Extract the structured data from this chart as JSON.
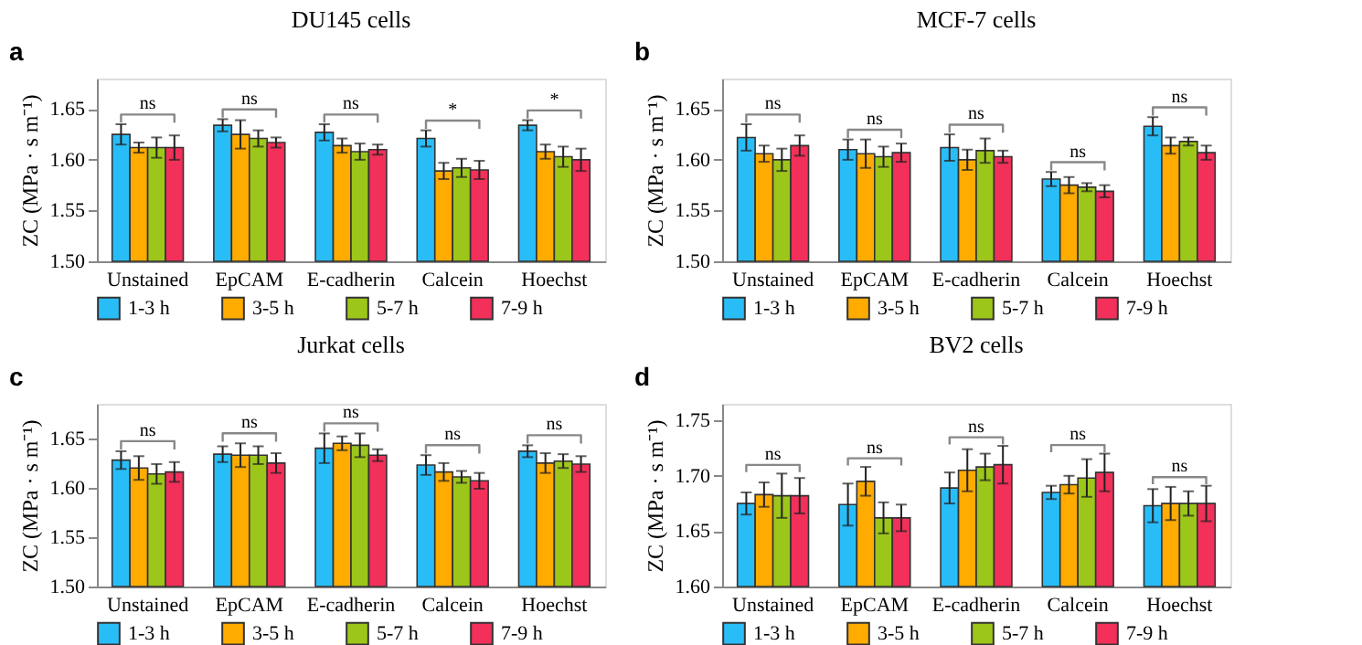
{
  "chart_data": [
    {
      "type": "bar",
      "title": "DU145 cells",
      "ylabel": "ZC (MPa · s m⁻¹)",
      "categories": [
        "Unstained",
        "EpCAM",
        "E-cadherin",
        "Calcein",
        "Hoechst"
      ],
      "series": [
        {
          "name": "1-3 h",
          "color": "#29bdf8",
          "values": [
            1.625,
            1.634,
            1.627,
            1.621,
            1.634
          ],
          "errors": [
            0.01,
            0.006,
            0.008,
            0.008,
            0.005
          ]
        },
        {
          "name": "3-5 h",
          "color": "#ffab00",
          "values": [
            1.612,
            1.625,
            1.614,
            1.589,
            1.608
          ],
          "errors": [
            0.005,
            0.014,
            0.007,
            0.008,
            0.007
          ]
        },
        {
          "name": "5-7 h",
          "color": "#9dc61a",
          "values": [
            1.612,
            1.621,
            1.608,
            1.592,
            1.603
          ],
          "errors": [
            0.01,
            0.008,
            0.008,
            0.009,
            0.01
          ]
        },
        {
          "name": "7-9 h",
          "color": "#f2305a",
          "values": [
            1.612,
            1.617,
            1.61,
            1.59,
            1.6
          ],
          "errors": [
            0.012,
            0.005,
            0.005,
            0.009,
            0.011
          ]
        }
      ],
      "ylim": [
        1.5,
        1.68
      ],
      "yticks": [
        {
          "value": 1.5,
          "label": "1.50"
        },
        1.55,
        {
          "value": 1.6,
          "label": "1.60"
        },
        1.65
      ],
      "annotations": [
        "a",
        "ns",
        "ns",
        "ns",
        "*",
        "*"
      ],
      "legend": "bottom",
      "grid": false
    },
    {
      "type": "bar",
      "title": "MCF-7 cells",
      "ylabel": "ZC (MPa · s m⁻¹)",
      "categories": [
        "Unstained",
        "EpCAM",
        "E-cadherin",
        "Calcein",
        "Hoechst"
      ],
      "series": [
        {
          "name": "1-3 h",
          "color": "#29bdf8",
          "values": [
            1.622,
            1.61,
            1.612,
            1.581,
            1.633
          ],
          "errors": [
            0.013,
            0.01,
            0.013,
            0.007,
            0.009
          ]
        },
        {
          "name": "3-5 h",
          "color": "#ffab00",
          "values": [
            1.606,
            1.606,
            1.6,
            1.575,
            1.614
          ],
          "errors": [
            0.008,
            0.014,
            0.01,
            0.008,
            0.008
          ]
        },
        {
          "name": "5-7 h",
          "color": "#9dc61a",
          "values": [
            1.6,
            1.603,
            1.609,
            1.573,
            1.618
          ],
          "errors": [
            0.011,
            0.01,
            0.012,
            0.004,
            0.004
          ]
        },
        {
          "name": "7-9 h",
          "color": "#f2305a",
          "values": [
            1.614,
            1.607,
            1.603,
            1.569,
            1.607
          ],
          "errors": [
            0.01,
            0.009,
            0.006,
            0.006,
            0.007
          ]
        }
      ],
      "ylim": [
        1.5,
        1.68
      ],
      "yticks": [
        {
          "value": 1.5,
          "label": "1.50"
        },
        1.55,
        {
          "value": 1.6,
          "label": "1.60"
        },
        1.65
      ],
      "annotations": [
        "b",
        "ns",
        "ns",
        "ns",
        "ns",
        "ns"
      ],
      "legend": "bottom",
      "grid": false
    },
    {
      "type": "bar",
      "title": "Jurkat cells",
      "ylabel": "ZC (MPa · s m⁻¹)",
      "categories": [
        "Unstained",
        "EpCAM",
        "E-cadherin",
        "Calcein",
        "Hoechst"
      ],
      "series": [
        {
          "name": "1-3 h",
          "color": "#29bdf8",
          "values": [
            1.628,
            1.634,
            1.64,
            1.623,
            1.637
          ],
          "errors": [
            0.009,
            0.008,
            0.015,
            0.01,
            0.006
          ]
        },
        {
          "name": "3-5 h",
          "color": "#ffab00",
          "values": [
            1.62,
            1.633,
            1.645,
            1.616,
            1.625
          ],
          "errors": [
            0.012,
            0.012,
            0.007,
            0.009,
            0.01
          ]
        },
        {
          "name": "5-7 h",
          "color": "#9dc61a",
          "values": [
            1.614,
            1.633,
            1.643,
            1.611,
            1.627
          ],
          "errors": [
            0.01,
            0.009,
            0.012,
            0.006,
            0.007
          ]
        },
        {
          "name": "7-9 h",
          "color": "#f2305a",
          "values": [
            1.616,
            1.625,
            1.633,
            1.607,
            1.624
          ],
          "errors": [
            0.01,
            0.01,
            0.006,
            0.008,
            0.008
          ]
        }
      ],
      "ylim": [
        1.5,
        1.685
      ],
      "yticks": [
        {
          "value": 1.5,
          "label": "1.50"
        },
        1.55,
        {
          "value": 1.6,
          "label": "1.60"
        },
        1.65
      ],
      "annotations": [
        "c",
        "ns",
        "ns",
        "ns",
        "ns",
        "ns"
      ],
      "legend": "bottom",
      "grid": false
    },
    {
      "type": "bar",
      "title": "BV2 cells",
      "ylabel": "ZC (MPa · s m⁻¹)",
      "categories": [
        "Unstained",
        "EpCAM",
        "E-cadherin",
        "Calcein",
        "Hoechst"
      ],
      "series": [
        {
          "name": "1-3 h",
          "color": "#29bdf8",
          "values": [
            1.675,
            1.674,
            1.689,
            1.685,
            1.673
          ],
          "errors": [
            0.01,
            0.019,
            0.014,
            0.006,
            0.015
          ]
        },
        {
          "name": "3-5 h",
          "color": "#ffab00",
          "values": [
            1.683,
            1.695,
            1.705,
            1.692,
            1.675
          ],
          "errors": [
            0.011,
            0.013,
            0.019,
            0.008,
            0.015
          ]
        },
        {
          "name": "5-7 h",
          "color": "#9dc61a",
          "values": [
            1.682,
            1.662,
            1.708,
            1.698,
            1.675
          ],
          "errors": [
            0.02,
            0.014,
            0.012,
            0.017,
            0.011
          ]
        },
        {
          "name": "7-9 h",
          "color": "#f2305a",
          "values": [
            1.682,
            1.662,
            1.71,
            1.703,
            1.675
          ],
          "errors": [
            0.016,
            0.012,
            0.017,
            0.017,
            0.016
          ]
        }
      ],
      "ylim": [
        1.6,
        1.765
      ],
      "yticks": [
        {
          "value": 1.6,
          "label": "1.60"
        },
        1.65,
        {
          "value": 1.7,
          "label": "1.70"
        },
        1.75
      ],
      "annotations": [
        "d",
        "ns",
        "ns",
        "ns",
        "ns",
        "ns"
      ],
      "legend": "bottom",
      "grid": false
    }
  ]
}
